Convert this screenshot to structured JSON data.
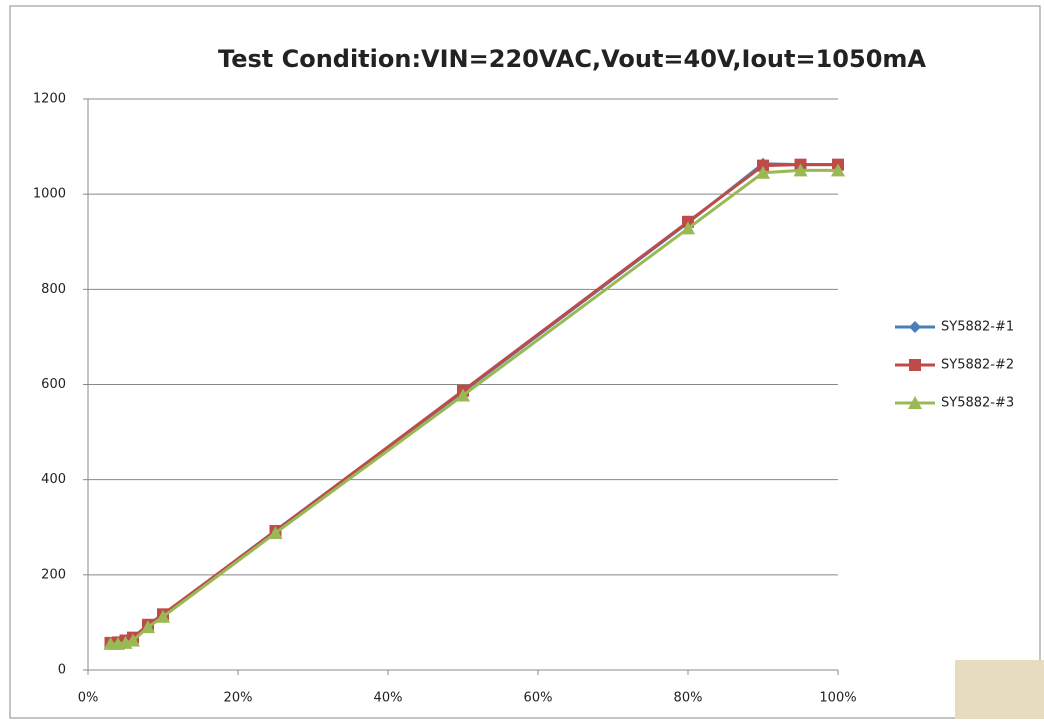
{
  "chart_data": {
    "type": "line",
    "title": "Test Condition:VIN=220VAC,Vout=40V,Iout=1050mA",
    "x": [
      3,
      4,
      5,
      6,
      8,
      10,
      25,
      50,
      80,
      90,
      95,
      100
    ],
    "series": [
      {
        "name": "SY5882-#1",
        "color": "#4a7ebb",
        "marker": "diamond",
        "values": [
          55,
          57,
          60,
          65,
          92,
          115,
          293,
          585,
          940,
          1064,
          1062,
          1062
        ]
      },
      {
        "name": "SY5882-#2",
        "color": "#be4b48",
        "marker": "square",
        "values": [
          57,
          58,
          62,
          68,
          95,
          117,
          292,
          587,
          942,
          1060,
          1062,
          1062
        ]
      },
      {
        "name": "SY5882-#3",
        "color": "#98b954",
        "marker": "triangle",
        "values": [
          55,
          55,
          57,
          62,
          90,
          112,
          288,
          577,
          928,
          1045,
          1050,
          1050
        ]
      }
    ],
    "xlim": [
      0,
      100
    ],
    "xticks": [
      {
        "value": 0,
        "label": "0%"
      },
      {
        "value": 20,
        "label": "20%"
      },
      {
        "value": 40,
        "label": "40%"
      },
      {
        "value": 60,
        "label": "60%"
      },
      {
        "value": 80,
        "label": "80%"
      },
      {
        "value": 100,
        "label": "100%"
      }
    ],
    "ylim": [
      0,
      1200
    ],
    "yticks": [
      0,
      200,
      400,
      600,
      800,
      1000,
      1200
    ],
    "grid": true,
    "legend": "right"
  }
}
